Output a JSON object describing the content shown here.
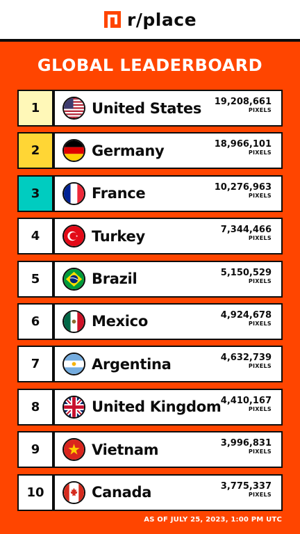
{
  "brand": {
    "logo_text": "r/place"
  },
  "title": "GLOBAL LEADERBOARD",
  "colors": {
    "background": "#ff4500",
    "rank1": "#fff8b8",
    "rank2": "#ffd635",
    "rank3": "#00ccc0",
    "default_rank": "#ffffff"
  },
  "pixel_unit": "PIXELS",
  "entries": [
    {
      "rank": "1",
      "country": "United States",
      "pixels": "19,208,661",
      "flag": "us-flag-icon",
      "rank_color": "#fff8b8"
    },
    {
      "rank": "2",
      "country": "Germany",
      "pixels": "18,966,101",
      "flag": "germany-flag-icon",
      "rank_color": "#ffd635"
    },
    {
      "rank": "3",
      "country": "France",
      "pixels": "10,276,963",
      "flag": "france-flag-icon",
      "rank_color": "#00ccc0"
    },
    {
      "rank": "4",
      "country": "Turkey",
      "pixels": "7,344,466",
      "flag": "turkey-flag-icon",
      "rank_color": "#ffffff"
    },
    {
      "rank": "5",
      "country": "Brazil",
      "pixels": "5,150,529",
      "flag": "brazil-flag-icon",
      "rank_color": "#ffffff"
    },
    {
      "rank": "6",
      "country": "Mexico",
      "pixels": "4,924,678",
      "flag": "mexico-flag-icon",
      "rank_color": "#ffffff"
    },
    {
      "rank": "7",
      "country": "Argentina",
      "pixels": "4,632,739",
      "flag": "argentina-flag-icon",
      "rank_color": "#ffffff"
    },
    {
      "rank": "8",
      "country": "United Kingdom",
      "pixels": "4,410,167",
      "flag": "uk-flag-icon",
      "rank_color": "#ffffff"
    },
    {
      "rank": "9",
      "country": "Vietnam",
      "pixels": "3,996,831",
      "flag": "vietnam-flag-icon",
      "rank_color": "#ffffff"
    },
    {
      "rank": "10",
      "country": "Canada",
      "pixels": "3,775,337",
      "flag": "canada-flag-icon",
      "rank_color": "#ffffff"
    }
  ],
  "footer": "AS OF JULY 25, 2023, 1:00 PM UTC"
}
